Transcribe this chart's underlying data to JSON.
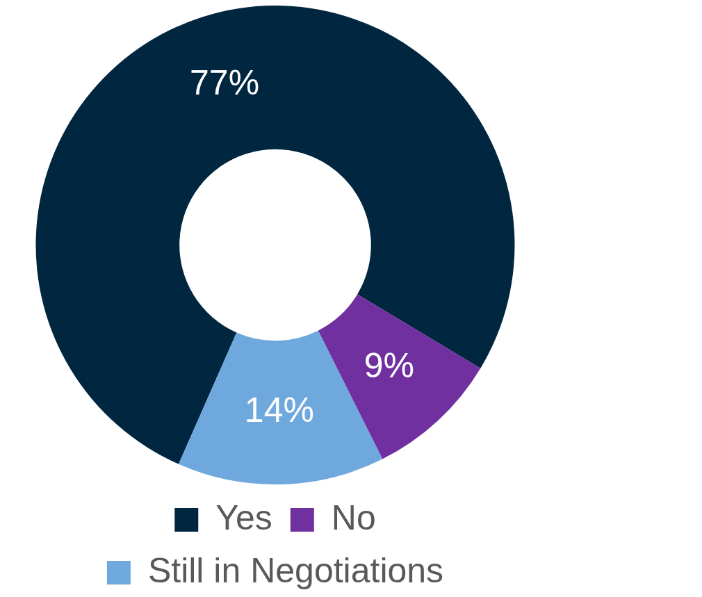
{
  "chart_data": {
    "type": "donut",
    "categories": [
      "Yes",
      "No",
      "Still in Negotiations"
    ],
    "values": [
      77,
      9,
      14
    ],
    "colors": [
      "#012640",
      "#7030a0",
      "#6fa8dc"
    ],
    "value_labels": [
      "77%",
      "9%",
      "14%"
    ],
    "legend": "bottom"
  }
}
